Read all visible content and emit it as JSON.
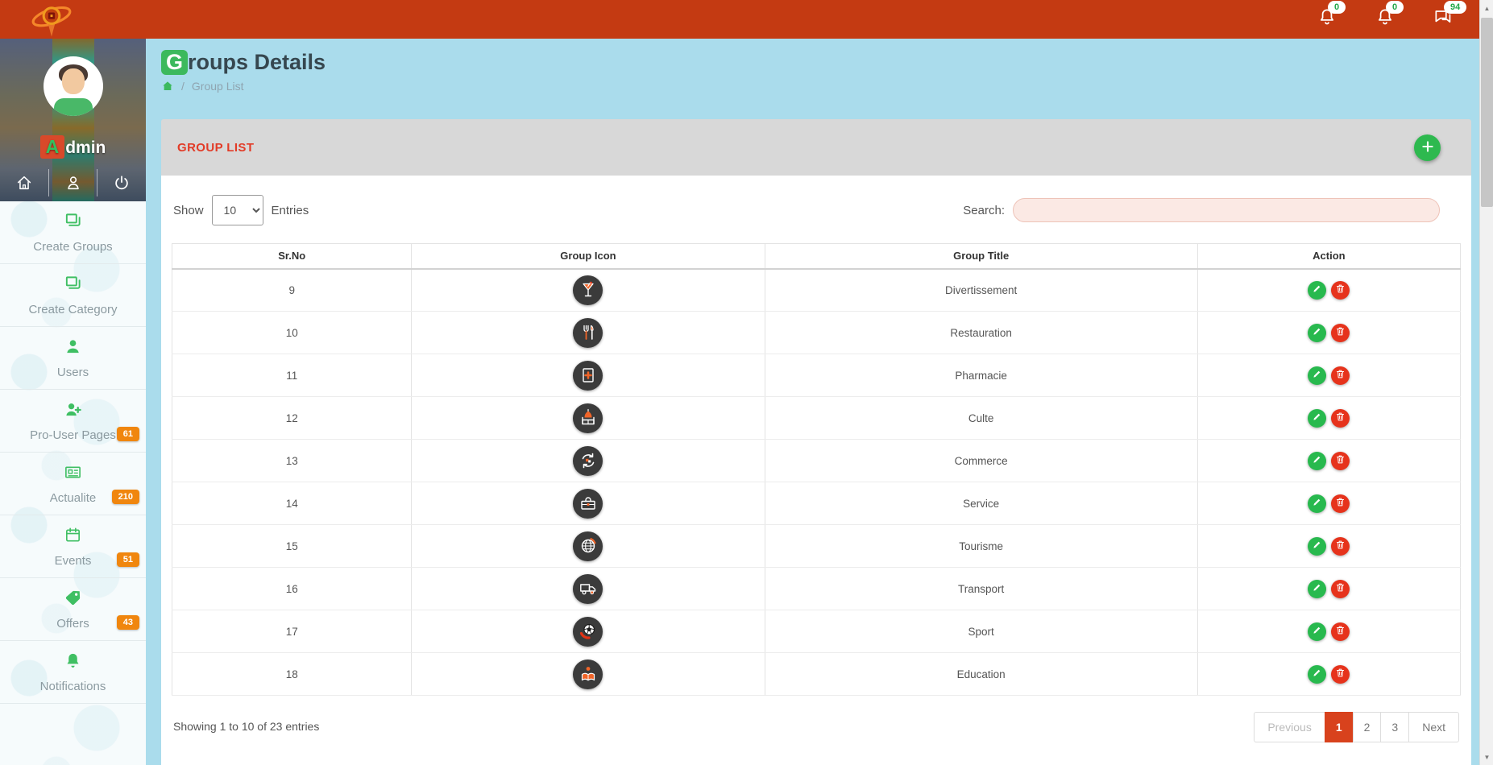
{
  "topbar": {
    "badges": {
      "bell1": "0",
      "bell2": "0",
      "messages": "94"
    }
  },
  "sidebar": {
    "admin_initial": "A",
    "admin_rest": "dmin",
    "items": [
      {
        "label": "Create Groups",
        "icon": "copy-icon"
      },
      {
        "label": "Create Category",
        "icon": "copy-icon"
      },
      {
        "label": "Users",
        "icon": "user-icon"
      },
      {
        "label": "Pro-User Pages",
        "icon": "user-plus-icon",
        "badge": "61"
      },
      {
        "label": "Actualite",
        "icon": "newspaper-icon",
        "badge": "210"
      },
      {
        "label": "Events",
        "icon": "calendar-icon",
        "badge": "51"
      },
      {
        "label": "Offers",
        "icon": "tag-icon",
        "badge": "43"
      },
      {
        "label": "Notifications",
        "icon": "bell-icon"
      }
    ]
  },
  "page": {
    "title_initial": "G",
    "title_rest": "roups Details",
    "breadcrumb_sep": "/",
    "breadcrumb_current": "Group List"
  },
  "panel": {
    "heading": "GROUP LIST"
  },
  "controls": {
    "show_label": "Show",
    "show_value": "10",
    "entries_label": "Entries",
    "search_label": "Search:"
  },
  "table": {
    "headers": [
      "Sr.No",
      "Group Icon",
      "Group Title",
      "Action"
    ],
    "rows": [
      {
        "sr": "9",
        "icon": "cocktail-icon",
        "title": "Divertissement"
      },
      {
        "sr": "10",
        "icon": "utensils-icon",
        "title": "Restauration"
      },
      {
        "sr": "11",
        "icon": "pharmacy-icon",
        "title": "Pharmacie"
      },
      {
        "sr": "12",
        "icon": "mosque-icon",
        "title": "Culte"
      },
      {
        "sr": "13",
        "icon": "exchange-icon",
        "title": "Commerce"
      },
      {
        "sr": "14",
        "icon": "toolbox-icon",
        "title": "Service"
      },
      {
        "sr": "15",
        "icon": "globe-icon",
        "title": "Tourisme"
      },
      {
        "sr": "16",
        "icon": "truck-icon",
        "title": "Transport"
      },
      {
        "sr": "17",
        "icon": "soccer-icon",
        "title": "Sport"
      },
      {
        "sr": "18",
        "icon": "reader-icon",
        "title": "Education"
      }
    ]
  },
  "footer": {
    "summary": "Showing 1 to 10 of 23 entries"
  },
  "pagination": {
    "previous": "Previous",
    "pages": [
      "1",
      "2",
      "3"
    ],
    "active_page": "1",
    "next": "Next"
  },
  "colors": {
    "topbar_red": "#c43a12",
    "accent_green": "#2eb94f",
    "badge_orange": "#f0860e",
    "active_page_red": "#d8421d",
    "panel_heading_red": "#e23b27",
    "page_bg_blue": "#aadcec"
  }
}
